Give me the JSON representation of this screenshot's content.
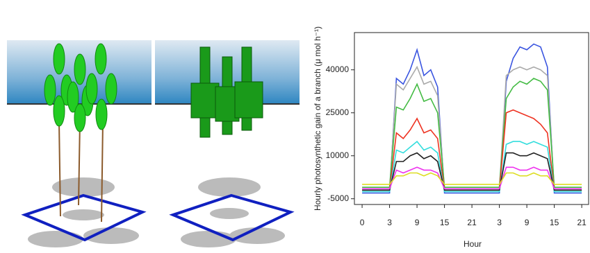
{
  "chart_data": {
    "type": "line",
    "y_label": "Hourly photosynthetic gain of a branch (μ mol h⁻¹)",
    "x_label": "Hour",
    "x": [
      0,
      1,
      1.25,
      1.5,
      1.75,
      2,
      2.25,
      2.5,
      2.75,
      3,
      4,
      5,
      5.25,
      5.5,
      5.75,
      6,
      6.25,
      6.5,
      6.75,
      7,
      8
    ],
    "xlim": [
      -0.28,
      8.25
    ],
    "xticks": [
      0,
      {
        "value": 1,
        "label": "3"
      },
      {
        "value": 2,
        "label": "9"
      },
      {
        "value": 3,
        "label": "15"
      },
      {
        "value": 4,
        "label": "21"
      },
      {
        "value": 5,
        "label": "3"
      },
      {
        "value": 6,
        "label": "9"
      },
      {
        "value": 7,
        "label": "15"
      },
      {
        "value": 8,
        "label": "21"
      }
    ],
    "ylim": [
      -7000,
      53000
    ],
    "yticks": [
      -5000,
      10000,
      25000,
      40000
    ],
    "series": [
      {
        "color": "#3a55e0",
        "values": [
          -3000,
          -3000,
          37000,
          35000,
          40000,
          47000,
          38000,
          40000,
          34000,
          -3000,
          -3000,
          -3000,
          36000,
          44000,
          48000,
          47000,
          49000,
          48000,
          41000,
          -3000,
          -3000
        ]
      },
      {
        "color": "#aaaaaa",
        "values": [
          -1500,
          -1500,
          35000,
          33000,
          37000,
          41000,
          35000,
          36000,
          31000,
          -1500,
          -1500,
          -1500,
          38000,
          40000,
          41000,
          40000,
          41000,
          40000,
          38000,
          -1500,
          -1500
        ]
      },
      {
        "color": "#44bb44",
        "values": [
          -1000,
          -1000,
          27000,
          26000,
          30000,
          35000,
          29000,
          30000,
          25000,
          -1000,
          -1000,
          -1000,
          30000,
          34000,
          36000,
          35000,
          37000,
          36000,
          33000,
          -1000,
          -1000
        ]
      },
      {
        "color": "#ee3322",
        "values": [
          -2000,
          -2000,
          18000,
          16000,
          19000,
          23000,
          18000,
          19000,
          16000,
          -2000,
          -2000,
          -2000,
          25000,
          26000,
          25000,
          24000,
          23000,
          21000,
          18000,
          -2000,
          -2000
        ]
      },
      {
        "color": "#33dddd",
        "values": [
          -2500,
          -2500,
          12000,
          11000,
          13000,
          15000,
          12000,
          13000,
          11000,
          -2500,
          -2500,
          -2500,
          14000,
          15000,
          15000,
          14000,
          15000,
          14000,
          13000,
          -2500,
          -2500
        ]
      },
      {
        "color": "#222222",
        "values": [
          -2000,
          -2000,
          8000,
          8000,
          10000,
          11000,
          9000,
          10000,
          8000,
          -2000,
          -2000,
          -2000,
          11000,
          11000,
          10000,
          10000,
          11000,
          10000,
          9000,
          -2000,
          -2000
        ]
      },
      {
        "color": "#ee33ee",
        "values": [
          -1500,
          -1500,
          5000,
          4000,
          5000,
          6000,
          5000,
          5000,
          4000,
          -1500,
          -1500,
          -1500,
          6000,
          6000,
          5000,
          5000,
          6000,
          5000,
          5000,
          -1500,
          -1500
        ]
      },
      {
        "color": "#dddd22",
        "values": [
          0,
          0,
          3000,
          3000,
          4000,
          4000,
          3000,
          4000,
          3000,
          0,
          0,
          0,
          4000,
          4000,
          3000,
          3000,
          4000,
          3000,
          3000,
          0,
          0
        ]
      }
    ]
  }
}
